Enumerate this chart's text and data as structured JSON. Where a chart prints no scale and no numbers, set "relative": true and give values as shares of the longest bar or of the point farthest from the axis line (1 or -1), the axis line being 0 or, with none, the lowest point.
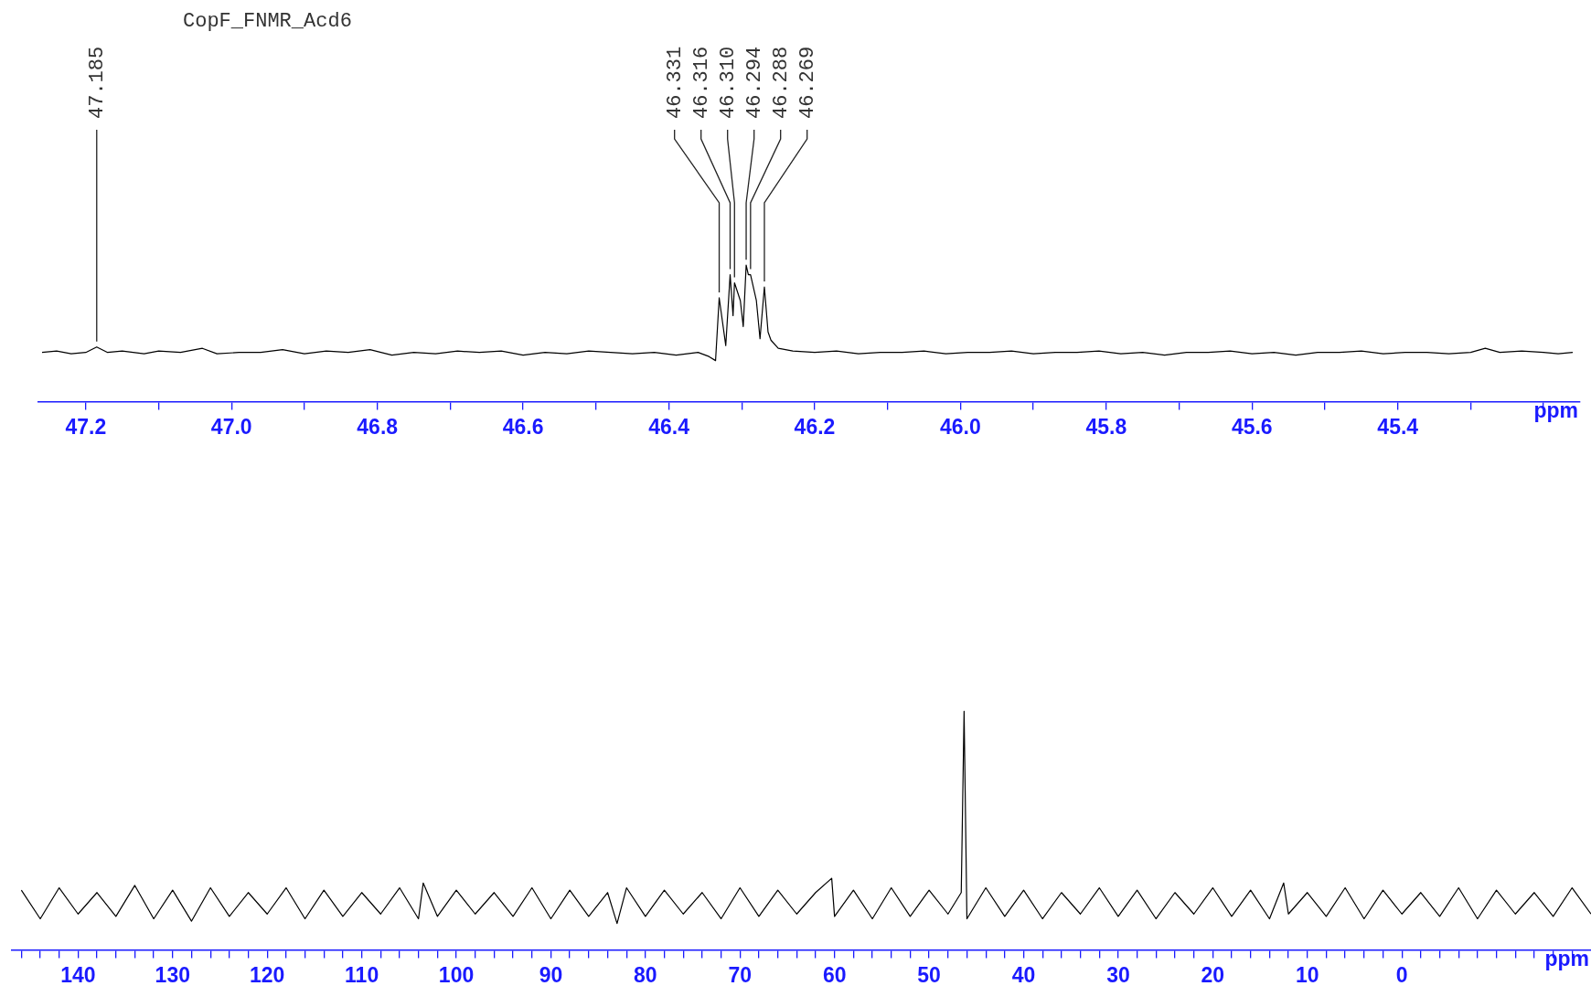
{
  "chart_data": [
    {
      "type": "line",
      "title": "CopF_FNMR_Acd6",
      "xlabel": "ppm",
      "relative": true,
      "marker": "none",
      "xlim": [
        47.265,
        45.15
      ],
      "xticks": [
        47.2,
        {
          "value": 47.1,
          "label": null
        },
        {
          "value": 47,
          "label": "47.0"
        },
        {
          "value": 46.9,
          "label": null
        },
        46.8,
        {
          "value": 46.7,
          "label": null
        },
        46.6,
        {
          "value": 46.5,
          "label": null
        },
        46.4,
        {
          "value": 46.3,
          "label": null
        },
        46.2,
        {
          "value": 46.1,
          "label": null
        },
        {
          "value": 46,
          "label": "46.0"
        },
        {
          "value": 45.9,
          "label": null
        },
        45.8,
        {
          "value": 45.7,
          "label": null
        },
        45.6,
        {
          "value": 45.5,
          "label": null
        },
        45.4,
        {
          "value": 45.3,
          "label": null
        },
        {
          "value": 45.2,
          "label": null
        }
      ],
      "x": [
        47.26,
        47.24,
        47.22,
        47.2,
        47.185,
        47.17,
        47.15,
        47.12,
        47.1,
        47.07,
        47.04,
        47.02,
        46.99,
        46.96,
        46.93,
        46.9,
        46.87,
        46.84,
        46.81,
        46.78,
        46.75,
        46.72,
        46.69,
        46.66,
        46.63,
        46.6,
        46.57,
        46.54,
        46.51,
        46.48,
        46.45,
        46.42,
        46.39,
        46.36,
        46.345,
        46.336,
        46.331,
        46.322,
        46.316,
        46.312,
        46.31,
        46.302,
        46.298,
        46.294,
        46.291,
        46.288,
        46.28,
        46.275,
        46.269,
        46.264,
        46.26,
        46.25,
        46.23,
        46.2,
        46.17,
        46.14,
        46.11,
        46.08,
        46.05,
        46.02,
        45.99,
        45.96,
        45.93,
        45.9,
        45.87,
        45.84,
        45.81,
        45.78,
        45.75,
        45.72,
        45.69,
        45.66,
        45.63,
        45.6,
        45.57,
        45.54,
        45.51,
        45.48,
        45.45,
        45.42,
        45.39,
        45.36,
        45.33,
        45.3,
        45.28,
        45.26,
        45.23,
        45.2,
        45.18,
        45.16
      ],
      "series": [
        {
          "color": "#000000",
          "values": [
            0.36,
            0.37,
            0.35,
            0.36,
            0.4,
            0.36,
            0.37,
            0.35,
            0.37,
            0.36,
            0.39,
            0.35,
            0.36,
            0.36,
            0.38,
            0.35,
            0.37,
            0.36,
            0.38,
            0.34,
            0.36,
            0.35,
            0.37,
            0.36,
            0.37,
            0.34,
            0.36,
            0.35,
            0.37,
            0.36,
            0.35,
            0.36,
            0.34,
            0.36,
            0.33,
            0.3,
            0.76,
            0.41,
            0.93,
            0.63,
            0.87,
            0.74,
            0.55,
            1,
            0.93,
            0.93,
            0.74,
            0.46,
            0.84,
            0.51,
            0.45,
            0.39,
            0.37,
            0.36,
            0.37,
            0.35,
            0.36,
            0.36,
            0.37,
            0.35,
            0.36,
            0.36,
            0.37,
            0.35,
            0.36,
            0.36,
            0.37,
            0.35,
            0.36,
            0.34,
            0.36,
            0.36,
            0.37,
            0.35,
            0.36,
            0.34,
            0.36,
            0.36,
            0.37,
            0.35,
            0.36,
            0.36,
            0.35,
            0.36,
            0.39,
            0.36,
            0.37,
            0.36,
            0.35,
            0.36
          ]
        }
      ],
      "annotations": [
        {
          "text": "47.185",
          "x": 47.185,
          "y": 0.4
        },
        {
          "text": "46.331",
          "x": 46.331,
          "y": 0.76
        },
        {
          "text": "46.316",
          "x": 46.316,
          "y": 0.93
        },
        {
          "text": "46.310",
          "x": 46.31,
          "y": 0.87
        },
        {
          "text": "46.294",
          "x": 46.294,
          "y": 1
        },
        {
          "text": "46.288",
          "x": 46.288,
          "y": 0.93
        },
        {
          "text": "46.269",
          "x": 46.269,
          "y": 0.84
        }
      ]
    },
    {
      "type": "line",
      "xlabel": "ppm",
      "relative": true,
      "marker": "none",
      "xlim": [
        147,
        -20
      ],
      "xticks": [
        {
          "value": 146,
          "label": null
        },
        {
          "value": 144,
          "label": null
        },
        {
          "value": 142,
          "label": null
        },
        140,
        {
          "value": 138,
          "label": null
        },
        {
          "value": 136,
          "label": null
        },
        {
          "value": 134,
          "label": null
        },
        {
          "value": 132,
          "label": null
        },
        130,
        {
          "value": 128,
          "label": null
        },
        {
          "value": 126,
          "label": null
        },
        {
          "value": 124,
          "label": null
        },
        {
          "value": 122,
          "label": null
        },
        120,
        {
          "value": 118,
          "label": null
        },
        {
          "value": 116,
          "label": null
        },
        {
          "value": 114,
          "label": null
        },
        {
          "value": 112,
          "label": null
        },
        110,
        {
          "value": 108,
          "label": null
        },
        {
          "value": 106,
          "label": null
        },
        {
          "value": 104,
          "label": null
        },
        {
          "value": 102,
          "label": null
        },
        100,
        {
          "value": 98,
          "label": null
        },
        {
          "value": 96,
          "label": null
        },
        {
          "value": 94,
          "label": null
        },
        {
          "value": 92,
          "label": null
        },
        90,
        {
          "value": 88,
          "label": null
        },
        {
          "value": 86,
          "label": null
        },
        {
          "value": 84,
          "label": null
        },
        {
          "value": 82,
          "label": null
        },
        80,
        {
          "value": 78,
          "label": null
        },
        {
          "value": 76,
          "label": null
        },
        {
          "value": 74,
          "label": null
        },
        {
          "value": 72,
          "label": null
        },
        70,
        {
          "value": 68,
          "label": null
        },
        {
          "value": 66,
          "label": null
        },
        {
          "value": 64,
          "label": null
        },
        {
          "value": 62,
          "label": null
        },
        60,
        {
          "value": 58,
          "label": null
        },
        {
          "value": 56,
          "label": null
        },
        {
          "value": 54,
          "label": null
        },
        {
          "value": 52,
          "label": null
        },
        50,
        {
          "value": 48,
          "label": null
        },
        {
          "value": 46,
          "label": null
        },
        {
          "value": 44,
          "label": null
        },
        {
          "value": 42,
          "label": null
        },
        40,
        {
          "value": 38,
          "label": null
        },
        {
          "value": 36,
          "label": null
        },
        {
          "value": 34,
          "label": null
        },
        {
          "value": 32,
          "label": null
        },
        30,
        {
          "value": 28,
          "label": null
        },
        {
          "value": 26,
          "label": null
        },
        {
          "value": 24,
          "label": null
        },
        {
          "value": 22,
          "label": null
        },
        20,
        {
          "value": 18,
          "label": null
        },
        {
          "value": 16,
          "label": null
        },
        {
          "value": 14,
          "label": null
        },
        {
          "value": 12,
          "label": null
        },
        10,
        {
          "value": 8,
          "label": null
        },
        {
          "value": 6,
          "label": null
        },
        {
          "value": 4,
          "label": null
        },
        {
          "value": 2,
          "label": null
        },
        0,
        {
          "value": -2,
          "label": null
        },
        {
          "value": -4,
          "label": null
        },
        {
          "value": -6,
          "label": null
        },
        {
          "value": -8,
          "label": null
        },
        {
          "value": -10,
          "label": null
        },
        {
          "value": -12,
          "label": null
        },
        {
          "value": -14,
          "label": null
        },
        {
          "value": -16,
          "label": null
        },
        {
          "value": -18,
          "label": null
        }
      ],
      "x": [
        146,
        144,
        142,
        140,
        138,
        136,
        134,
        132,
        130,
        128,
        126,
        124,
        122,
        120,
        118,
        116,
        114,
        112,
        110,
        108,
        106,
        104,
        103.5,
        102,
        100,
        98,
        96,
        94,
        92,
        90,
        88,
        86,
        84,
        83,
        82,
        80,
        78,
        76,
        74,
        72,
        70,
        68,
        66,
        64,
        62,
        60.3,
        60,
        58,
        56,
        54,
        52,
        50,
        48,
        46.6,
        46.3,
        46,
        44,
        42,
        40,
        38,
        36,
        34,
        32,
        30,
        28,
        26,
        24,
        22,
        20,
        18,
        16,
        14,
        12.5,
        12,
        10,
        8,
        6,
        4,
        2,
        0,
        -2,
        -4,
        -6,
        -8,
        -10,
        -12,
        -14,
        -16,
        -18,
        -20
      ],
      "series": [
        {
          "color": "#000000",
          "values": [
            0.25,
            0.13,
            0.26,
            0.15,
            0.24,
            0.14,
            0.27,
            0.13,
            0.25,
            0.12,
            0.26,
            0.14,
            0.24,
            0.15,
            0.26,
            0.13,
            0.25,
            0.14,
            0.24,
            0.15,
            0.26,
            0.13,
            0.28,
            0.14,
            0.25,
            0.15,
            0.24,
            0.14,
            0.26,
            0.13,
            0.25,
            0.14,
            0.24,
            0.11,
            0.26,
            0.14,
            0.25,
            0.15,
            0.24,
            0.13,
            0.26,
            0.14,
            0.25,
            0.15,
            0.24,
            0.3,
            0.14,
            0.25,
            0.13,
            0.26,
            0.14,
            0.25,
            0.15,
            0.24,
            1,
            0.13,
            0.26,
            0.14,
            0.25,
            0.13,
            0.24,
            0.15,
            0.26,
            0.14,
            0.25,
            0.13,
            0.24,
            0.15,
            0.26,
            0.14,
            0.25,
            0.13,
            0.28,
            0.15,
            0.24,
            0.14,
            0.26,
            0.13,
            0.25,
            0.15,
            0.24,
            0.14,
            0.26,
            0.13,
            0.25,
            0.15,
            0.24,
            0.14,
            0.26,
            0.15
          ]
        }
      ]
    }
  ]
}
